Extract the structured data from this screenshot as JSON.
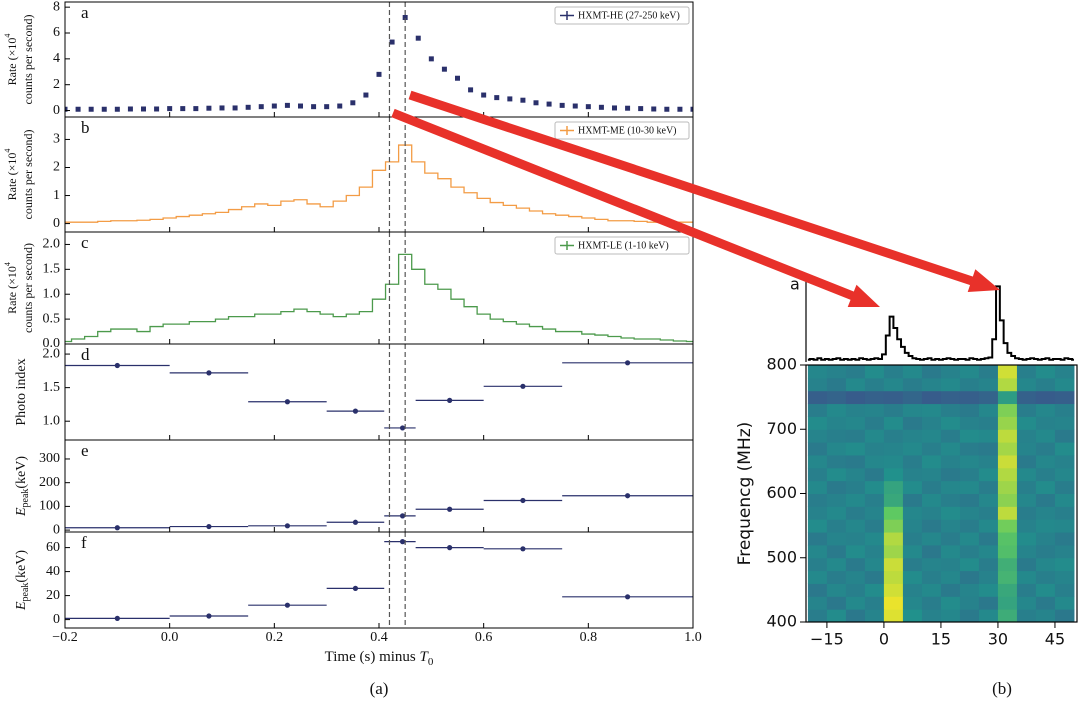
{
  "chart_data": [
    {
      "type": "scatter",
      "label": "a",
      "ylabel": [
        "Rate (×10",
        "4",
        "counts per second)"
      ],
      "xlim": [
        -0.2,
        1.0
      ],
      "ylim": [
        -0.5,
        8.4
      ],
      "yticks": [
        0,
        2,
        4,
        6,
        8
      ],
      "vlines": [
        0.42,
        0.45
      ],
      "legend": "upper right",
      "x": [
        -0.2,
        -0.175,
        -0.15,
        -0.125,
        -0.1,
        -0.075,
        -0.05,
        -0.025,
        0,
        0.025,
        0.05,
        0.075,
        0.1,
        0.125,
        0.15,
        0.175,
        0.2,
        0.225,
        0.25,
        0.275,
        0.3,
        0.325,
        0.35,
        0.375,
        0.4,
        0.425,
        0.45,
        0.475,
        0.5,
        0.525,
        0.55,
        0.575,
        0.6,
        0.625,
        0.65,
        0.675,
        0.7,
        0.725,
        0.75,
        0.775,
        0.8,
        0.825,
        0.85,
        0.875,
        0.9,
        0.925,
        0.95,
        0.975,
        1.0
      ],
      "series": [
        {
          "name": "HXMT-HE (27-250 keV)",
          "color": "#2a306b",
          "values": [
            0.1,
            0.1,
            0.1,
            0.1,
            0.1,
            0.12,
            0.12,
            0.12,
            0.15,
            0.15,
            0.15,
            0.18,
            0.2,
            0.2,
            0.25,
            0.3,
            0.35,
            0.4,
            0.35,
            0.3,
            0.3,
            0.35,
            0.6,
            1.2,
            2.8,
            5.3,
            7.2,
            5.6,
            4.0,
            3.2,
            2.5,
            1.6,
            1.2,
            1.0,
            0.9,
            0.8,
            0.6,
            0.5,
            0.4,
            0.35,
            0.3,
            0.25,
            0.2,
            0.18,
            0.15,
            0.12,
            0.1,
            0.1,
            0.1
          ]
        }
      ]
    },
    {
      "type": "line",
      "label": "b",
      "ylabel": [
        "Rate (×10",
        "4",
        "counts per second)"
      ],
      "xlim": [
        -0.2,
        1.0
      ],
      "ylim": [
        -0.3,
        3.8
      ],
      "yticks": [
        0,
        1,
        2,
        3
      ],
      "legend": "upper right",
      "x": [
        -0.2,
        -0.175,
        -0.15,
        -0.125,
        -0.1,
        -0.075,
        -0.05,
        -0.025,
        0,
        0.025,
        0.05,
        0.075,
        0.1,
        0.125,
        0.15,
        0.175,
        0.2,
        0.225,
        0.25,
        0.275,
        0.3,
        0.325,
        0.35,
        0.375,
        0.4,
        0.425,
        0.45,
        0.475,
        0.5,
        0.525,
        0.55,
        0.575,
        0.6,
        0.625,
        0.65,
        0.675,
        0.7,
        0.725,
        0.75,
        0.775,
        0.8,
        0.825,
        0.85,
        0.875,
        0.9,
        0.925,
        0.95,
        0.975,
        1.0
      ],
      "series": [
        {
          "name": "HXMT-ME (10-30 keV)",
          "color": "#f39c45",
          "values": [
            0.05,
            0.05,
            0.05,
            0.08,
            0.1,
            0.1,
            0.12,
            0.15,
            0.2,
            0.25,
            0.3,
            0.35,
            0.4,
            0.5,
            0.6,
            0.7,
            0.65,
            0.8,
            0.85,
            0.7,
            0.6,
            0.8,
            1.0,
            1.3,
            1.9,
            2.2,
            2.8,
            2.2,
            1.8,
            1.6,
            1.3,
            1.1,
            0.9,
            0.75,
            0.65,
            0.55,
            0.45,
            0.35,
            0.3,
            0.25,
            0.2,
            0.15,
            0.1,
            0.1,
            0.08,
            0.05,
            0.05,
            0.05,
            0.05
          ]
        }
      ]
    },
    {
      "type": "line",
      "label": "c",
      "ylabel": [
        "Rate (×10",
        "4",
        "counts per second)"
      ],
      "xlim": [
        -0.2,
        1.0
      ],
      "ylim": [
        0,
        2.25
      ],
      "yticks": [
        {
          "value": 0,
          "label": "0.0"
        },
        0.5,
        {
          "value": 1,
          "label": "1.0"
        },
        1.5,
        {
          "value": 2,
          "label": "2.0"
        }
      ],
      "legend": "upper right",
      "x": [
        -0.2,
        -0.175,
        -0.15,
        -0.125,
        -0.1,
        -0.075,
        -0.05,
        -0.025,
        0,
        0.025,
        0.05,
        0.075,
        0.1,
        0.125,
        0.15,
        0.175,
        0.2,
        0.225,
        0.25,
        0.275,
        0.3,
        0.325,
        0.35,
        0.375,
        0.4,
        0.425,
        0.45,
        0.475,
        0.5,
        0.525,
        0.55,
        0.575,
        0.6,
        0.625,
        0.65,
        0.675,
        0.7,
        0.725,
        0.75,
        0.775,
        0.8,
        0.825,
        0.85,
        0.875,
        0.9,
        0.925,
        0.95,
        0.975,
        1.0
      ],
      "series": [
        {
          "name": "HXMT-LE (1-10 keV)",
          "color": "#4c9a4c",
          "values": [
            0.05,
            0.1,
            0.15,
            0.25,
            0.3,
            0.3,
            0.25,
            0.35,
            0.4,
            0.4,
            0.45,
            0.45,
            0.5,
            0.55,
            0.55,
            0.6,
            0.6,
            0.65,
            0.7,
            0.65,
            0.6,
            0.55,
            0.6,
            0.65,
            0.9,
            1.2,
            1.8,
            1.5,
            1.2,
            1.1,
            0.9,
            0.75,
            0.6,
            0.5,
            0.45,
            0.4,
            0.35,
            0.3,
            0.25,
            0.25,
            0.2,
            0.18,
            0.15,
            0.12,
            0.1,
            0.1,
            0.08,
            0.06,
            0.05
          ]
        }
      ]
    },
    {
      "type": "errorbar",
      "label": "d",
      "ylabel": "Photo index",
      "color": "#2a306b",
      "xlim": [
        -0.2,
        1.0
      ],
      "ylim": [
        0.72,
        2.15
      ],
      "yticks": [
        {
          "value": 1,
          "label": "1.0"
        },
        1.5,
        {
          "value": 2,
          "label": "2.0"
        }
      ],
      "x": [
        -0.1,
        0.075,
        0.225,
        0.355,
        0.445,
        0.535,
        0.675,
        0.875
      ],
      "x_low": [
        -0.2,
        0,
        0.15,
        0.3,
        0.41,
        0.47,
        0.6,
        0.75
      ],
      "x_high": [
        0,
        0.15,
        0.3,
        0.41,
        0.47,
        0.6,
        0.75,
        1.0
      ],
      "values": [
        1.83,
        1.72,
        1.29,
        1.15,
        0.9,
        1.31,
        1.52,
        1.87
      ]
    },
    {
      "type": "errorbar",
      "label": "e",
      "ylabel": [
        "E",
        "peak",
        "(keV)"
      ],
      "color": "#2a306b",
      "xlim": [
        -0.2,
        1.0
      ],
      "ylim": [
        -8,
        380
      ],
      "yticks": [
        0,
        100,
        200,
        300
      ],
      "x": [
        -0.1,
        0.075,
        0.225,
        0.355,
        0.445,
        0.535,
        0.675,
        0.875
      ],
      "x_low": [
        -0.2,
        0,
        0.15,
        0.3,
        0.41,
        0.47,
        0.6,
        0.75
      ],
      "x_high": [
        0,
        0.15,
        0.3,
        0.41,
        0.47,
        0.6,
        0.75,
        1.0
      ],
      "values": [
        10,
        15,
        18,
        33,
        60,
        88,
        125,
        145
      ]
    },
    {
      "type": "errorbar",
      "label": "f",
      "ylabel": [
        "E",
        "peak",
        "(keV)"
      ],
      "color": "#2a306b",
      "xlim": [
        -0.2,
        1.0
      ],
      "ylim": [
        -7,
        73
      ],
      "yticks": [
        0,
        20,
        40,
        60
      ],
      "xticks": [
        {
          "value": -0.2,
          "label": "−0.2"
        },
        {
          "value": 0,
          "label": "0.0"
        },
        0.2,
        0.4,
        0.6,
        0.8,
        {
          "value": 1,
          "label": "1.0"
        }
      ],
      "xlabel": [
        "Time (s) minus ",
        "T",
        "0"
      ],
      "x": [
        -0.1,
        0.075,
        0.225,
        0.355,
        0.445,
        0.535,
        0.675,
        0.875
      ],
      "x_low": [
        -0.2,
        0,
        0.15,
        0.3,
        0.41,
        0.47,
        0.6,
        0.75
      ],
      "x_high": [
        0,
        0.15,
        0.3,
        0.41,
        0.47,
        0.6,
        0.75,
        1.0
      ],
      "values": [
        1,
        3,
        12,
        26,
        65,
        60,
        59,
        19
      ]
    },
    {
      "type": "step",
      "label": "a",
      "color": "#000000",
      "xlim": [
        -20.5,
        50.8
      ],
      "ylim": [
        0,
        1.15
      ],
      "x": [
        -20,
        -19,
        -18,
        -17,
        -16,
        -15,
        -14,
        -13,
        -12,
        -11,
        -10,
        -9,
        -8,
        -7,
        -6,
        -5,
        -4,
        -3,
        -2,
        -1,
        0,
        1,
        2,
        3,
        4,
        5,
        6,
        7,
        8,
        9,
        10,
        11,
        12,
        13,
        14,
        15,
        16,
        17,
        18,
        19,
        20,
        21,
        22,
        23,
        24,
        25,
        26,
        27,
        28,
        29,
        30,
        31,
        32,
        33,
        34,
        35,
        36,
        37,
        38,
        39,
        40,
        41,
        42,
        43,
        44,
        45,
        46,
        47,
        48,
        49,
        50
      ],
      "values": [
        0.03,
        0.04,
        0.03,
        0.05,
        0.03,
        0.04,
        0.03,
        0.04,
        0.05,
        0.03,
        0.04,
        0.03,
        0.04,
        0.03,
        0.05,
        0.04,
        0.03,
        0.04,
        0.05,
        0.04,
        0.1,
        0.35,
        0.6,
        0.45,
        0.3,
        0.2,
        0.12,
        0.08,
        0.05,
        0.04,
        0.03,
        0.04,
        0.05,
        0.03,
        0.04,
        0.03,
        0.04,
        0.05,
        0.04,
        0.03,
        0.04,
        0.04,
        0.03,
        0.05,
        0.04,
        0.03,
        0.04,
        0.05,
        0.06,
        0.3,
        1.0,
        0.55,
        0.25,
        0.12,
        0.08,
        0.05,
        0.04,
        0.03,
        0.04,
        0.05,
        0.04,
        0.03,
        0.04,
        0.05,
        0.03,
        0.04,
        0.04,
        0.03,
        0.05,
        0.04,
        0.03
      ]
    },
    {
      "type": "heatmap",
      "colormap": "viridis",
      "ylabel": "Frequencg (MHz)",
      "xlim": [
        -20.5,
        50.8
      ],
      "ylim": [
        400,
        800
      ],
      "xticks": [
        {
          "value": -15,
          "label": "−15"
        },
        0,
        15,
        30,
        45
      ],
      "yticks": [
        400,
        500,
        600,
        700,
        800
      ],
      "x_edges": [
        -20,
        -15,
        -10,
        -5,
        0,
        5,
        10,
        15,
        20,
        25,
        30,
        35,
        40,
        45,
        50
      ],
      "y_edges": [
        400,
        420,
        440,
        460,
        480,
        500,
        520,
        540,
        560,
        580,
        600,
        620,
        640,
        660,
        680,
        700,
        720,
        740,
        760,
        780,
        800
      ],
      "z": [
        [
          0.42,
          0.48,
          0.4,
          0.45,
          0.95,
          0.5,
          0.44,
          0.46,
          0.41,
          0.47,
          0.62,
          0.43,
          0.45,
          0.4
        ],
        [
          0.45,
          0.4,
          0.47,
          0.43,
          0.97,
          0.46,
          0.42,
          0.48,
          0.44,
          0.4,
          0.58,
          0.46,
          0.41,
          0.47
        ],
        [
          0.4,
          0.46,
          0.43,
          0.48,
          0.93,
          0.44,
          0.47,
          0.41,
          0.45,
          0.48,
          0.6,
          0.42,
          0.48,
          0.43
        ],
        [
          0.47,
          0.42,
          0.45,
          0.41,
          0.9,
          0.48,
          0.43,
          0.46,
          0.4,
          0.44,
          0.65,
          0.47,
          0.43,
          0.45
        ],
        [
          0.43,
          0.47,
          0.41,
          0.46,
          0.92,
          0.42,
          0.45,
          0.44,
          0.48,
          0.42,
          0.63,
          0.41,
          0.46,
          0.48
        ],
        [
          0.46,
          0.41,
          0.48,
          0.44,
          0.85,
          0.47,
          0.4,
          0.47,
          0.43,
          0.46,
          0.7,
          0.45,
          0.42,
          0.44
        ],
        [
          0.41,
          0.45,
          0.44,
          0.47,
          0.88,
          0.43,
          0.46,
          0.42,
          0.47,
          0.41,
          0.72,
          0.48,
          0.44,
          0.41
        ],
        [
          0.48,
          0.43,
          0.46,
          0.42,
          0.8,
          0.45,
          0.41,
          0.45,
          0.42,
          0.47,
          0.78,
          0.44,
          0.47,
          0.46
        ],
        [
          0.44,
          0.47,
          0.42,
          0.45,
          0.75,
          0.46,
          0.44,
          0.48,
          0.45,
          0.43,
          0.9,
          0.42,
          0.45,
          0.43
        ],
        [
          0.42,
          0.44,
          0.47,
          0.43,
          0.6,
          0.41,
          0.47,
          0.43,
          0.41,
          0.46,
          0.82,
          0.46,
          0.41,
          0.47
        ],
        [
          0.47,
          0.41,
          0.43,
          0.48,
          0.58,
          0.48,
          0.42,
          0.46,
          0.47,
          0.42,
          0.85,
          0.43,
          0.48,
          0.42
        ],
        [
          0.43,
          0.48,
          0.45,
          0.41,
          0.5,
          0.44,
          0.45,
          0.41,
          0.43,
          0.48,
          0.88,
          0.47,
          0.43,
          0.46
        ],
        [
          0.46,
          0.42,
          0.41,
          0.46,
          0.47,
          0.42,
          0.48,
          0.44,
          0.46,
          0.44,
          0.92,
          0.41,
          0.46,
          0.44
        ],
        [
          0.41,
          0.46,
          0.48,
          0.44,
          0.45,
          0.47,
          0.43,
          0.47,
          0.42,
          0.41,
          0.86,
          0.45,
          0.42,
          0.48
        ],
        [
          0.45,
          0.43,
          0.42,
          0.47,
          0.43,
          0.45,
          0.46,
          0.42,
          0.48,
          0.47,
          0.9,
          0.44,
          0.47,
          0.41
        ],
        [
          0.48,
          0.45,
          0.46,
          0.42,
          0.48,
          0.41,
          0.44,
          0.48,
          0.44,
          0.43,
          0.84,
          0.48,
          0.44,
          0.45
        ],
        [
          0.42,
          0.47,
          0.44,
          0.45,
          0.42,
          0.46,
          0.47,
          0.43,
          0.41,
          0.46,
          0.8,
          0.42,
          0.46,
          0.43
        ],
        [
          0.3,
          0.32,
          0.29,
          0.31,
          0.3,
          0.33,
          0.29,
          0.31,
          0.3,
          0.32,
          0.55,
          0.31,
          0.29,
          0.3
        ],
        [
          0.44,
          0.41,
          0.47,
          0.43,
          0.46,
          0.42,
          0.45,
          0.47,
          0.43,
          0.45,
          0.88,
          0.46,
          0.43,
          0.47
        ],
        [
          0.46,
          0.44,
          0.42,
          0.48,
          0.43,
          0.47,
          0.41,
          0.44,
          0.47,
          0.42,
          0.93,
          0.43,
          0.48,
          0.44
        ]
      ]
    }
  ],
  "captions": [
    "(a)",
    "(b)"
  ]
}
